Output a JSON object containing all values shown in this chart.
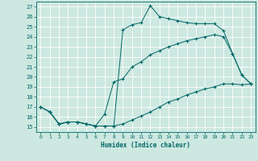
{
  "xlabel": "Humidex (Indice chaleur)",
  "bg_color": "#cce8e0",
  "line_color": "#006666",
  "xlim": [
    -0.5,
    23.5
  ],
  "ylim": [
    14.5,
    27.5
  ],
  "xticks": [
    0,
    1,
    2,
    3,
    4,
    5,
    6,
    7,
    8,
    9,
    10,
    11,
    12,
    13,
    14,
    15,
    16,
    17,
    18,
    19,
    20,
    21,
    22,
    23
  ],
  "yticks": [
    15,
    16,
    17,
    18,
    19,
    20,
    21,
    22,
    23,
    24,
    25,
    26,
    27
  ],
  "line1_x": [
    0,
    1,
    2,
    3,
    4,
    5,
    6,
    7,
    8,
    9,
    10,
    11,
    12,
    13,
    14,
    15,
    16,
    17,
    18,
    19,
    20,
    21,
    22,
    23
  ],
  "line1_y": [
    17.0,
    16.5,
    15.3,
    15.5,
    15.5,
    15.3,
    15.1,
    15.1,
    15.1,
    24.7,
    25.2,
    25.4,
    27.1,
    26.0,
    25.8,
    25.6,
    25.4,
    25.3,
    25.3,
    25.3,
    24.6,
    22.3,
    20.2,
    19.3
  ],
  "line2_x": [
    0,
    1,
    2,
    3,
    4,
    5,
    6,
    7,
    8,
    9,
    10,
    11,
    12,
    13,
    14,
    15,
    16,
    17,
    18,
    19,
    20,
    21,
    22,
    23
  ],
  "line2_y": [
    17.0,
    16.5,
    15.3,
    15.5,
    15.5,
    15.3,
    15.1,
    16.3,
    19.5,
    19.8,
    21.0,
    21.5,
    22.2,
    22.6,
    23.0,
    23.3,
    23.6,
    23.8,
    24.0,
    24.2,
    24.0,
    22.3,
    20.2,
    19.3
  ],
  "line3_x": [
    0,
    1,
    2,
    3,
    4,
    5,
    6,
    7,
    8,
    9,
    10,
    11,
    12,
    13,
    14,
    15,
    16,
    17,
    18,
    19,
    20,
    21,
    22,
    23
  ],
  "line3_y": [
    17.0,
    16.5,
    15.3,
    15.5,
    15.5,
    15.3,
    15.1,
    15.1,
    15.1,
    15.3,
    15.7,
    16.1,
    16.5,
    17.0,
    17.5,
    17.8,
    18.2,
    18.5,
    18.8,
    19.0,
    19.3,
    19.3,
    19.2,
    19.3
  ]
}
